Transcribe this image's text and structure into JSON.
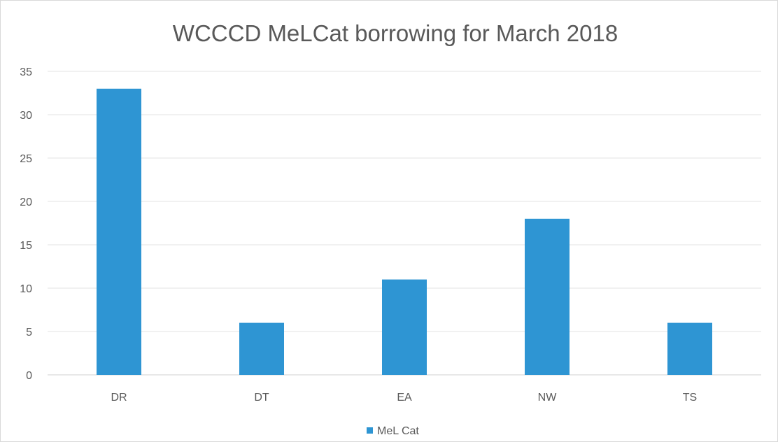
{
  "chart_data": {
    "type": "bar",
    "title": "WCCCD MeLCat borrowing for March 2018",
    "categories": [
      "DR",
      "DT",
      "EA",
      "NW",
      "TS"
    ],
    "series": [
      {
        "name": "MeL Cat",
        "values": [
          33,
          6,
          11,
          18,
          6
        ],
        "color": "#2e95d3"
      }
    ],
    "ylim": [
      0,
      35
    ],
    "yticks": [
      0,
      5,
      10,
      15,
      20,
      25,
      30,
      35
    ],
    "grid": true,
    "legend": "bottom"
  }
}
